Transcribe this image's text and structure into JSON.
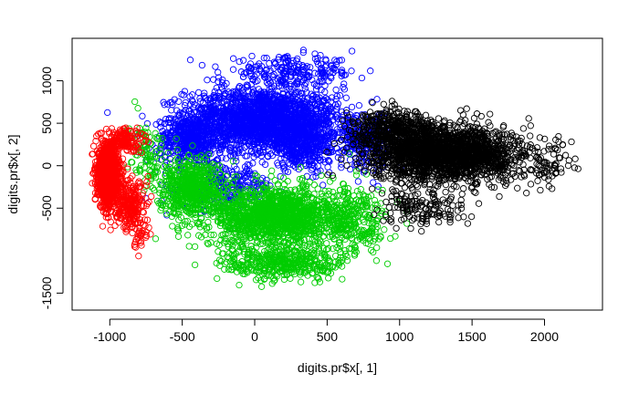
{
  "chart_data": {
    "type": "scatter",
    "xlabel": "digits.pr$x[, 1]",
    "ylabel": "digits.pr$x[, 2]",
    "xlim": [
      -1260,
      2400
    ],
    "ylim": [
      -1700,
      1500
    ],
    "x_ticks": [
      -1000,
      -500,
      0,
      500,
      1000,
      1500,
      2000
    ],
    "x_tick_labels": [
      "-1000",
      "-500",
      "0",
      "500",
      "1000",
      "1500",
      "2000"
    ],
    "y_ticks": [
      -1500,
      -500,
      0,
      500,
      1000
    ],
    "y_tick_labels": [
      "-1500",
      "-500",
      "0",
      "500",
      "1000"
    ],
    "grid": false,
    "marker": "open-circle",
    "series": [
      {
        "color": "#0000ff",
        "clusters": [
          {
            "center": [
              50,
              540
            ],
            "spread": [
              480,
              330
            ],
            "count": 2000
          },
          {
            "center": [
              -450,
              300
            ],
            "spread": [
              200,
              240
            ],
            "count": 400
          },
          {
            "center": [
              350,
              250
            ],
            "spread": [
              250,
              280
            ],
            "count": 400
          },
          {
            "center": [
              250,
              1100
            ],
            "spread": [
              420,
              160
            ],
            "count": 220
          },
          {
            "center": [
              -200,
              -250
            ],
            "spread": [
              300,
              260
            ],
            "count": 260
          },
          {
            "center": [
              750,
              300
            ],
            "spread": [
              180,
              280
            ],
            "count": 220
          }
        ]
      },
      {
        "color": "#00cd00",
        "clusters": [
          {
            "center": [
              150,
              -600
            ],
            "spread": [
              420,
              320
            ],
            "count": 1500
          },
          {
            "center": [
              -450,
              -250
            ],
            "spread": [
              200,
              300
            ],
            "count": 600
          },
          {
            "center": [
              200,
              -1150
            ],
            "spread": [
              380,
              180
            ],
            "count": 420
          },
          {
            "center": [
              700,
              -650
            ],
            "spread": [
              200,
              380
            ],
            "count": 250
          },
          {
            "center": [
              -750,
              200
            ],
            "spread": [
              120,
              300
            ],
            "count": 90
          }
        ]
      },
      {
        "color": "#000000",
        "clusters": [
          {
            "center": [
              1250,
              150
            ],
            "spread": [
              420,
              300
            ],
            "count": 1700
          },
          {
            "center": [
              1600,
              100
            ],
            "spread": [
              280,
              260
            ],
            "count": 350
          },
          {
            "center": [
              950,
              450
            ],
            "spread": [
              250,
              180
            ],
            "count": 350
          },
          {
            "center": [
              1150,
              -500
            ],
            "spread": [
              260,
              220
            ],
            "count": 150
          },
          {
            "center": [
              2050,
              0
            ],
            "spread": [
              170,
              260
            ],
            "count": 70
          }
        ]
      },
      {
        "color": "#ff0000",
        "clusters": [
          {
            "center": [
              -1010,
              -100
            ],
            "spread": [
              65,
              300
            ],
            "count": 1400
          },
          {
            "center": [
              -870,
              -450
            ],
            "spread": [
              100,
              250
            ],
            "count": 250
          },
          {
            "center": [
              -900,
              300
            ],
            "spread": [
              120,
              120
            ],
            "count": 150
          },
          {
            "center": [
              -780,
              -800
            ],
            "spread": [
              80,
              180
            ],
            "count": 40
          }
        ]
      }
    ]
  }
}
